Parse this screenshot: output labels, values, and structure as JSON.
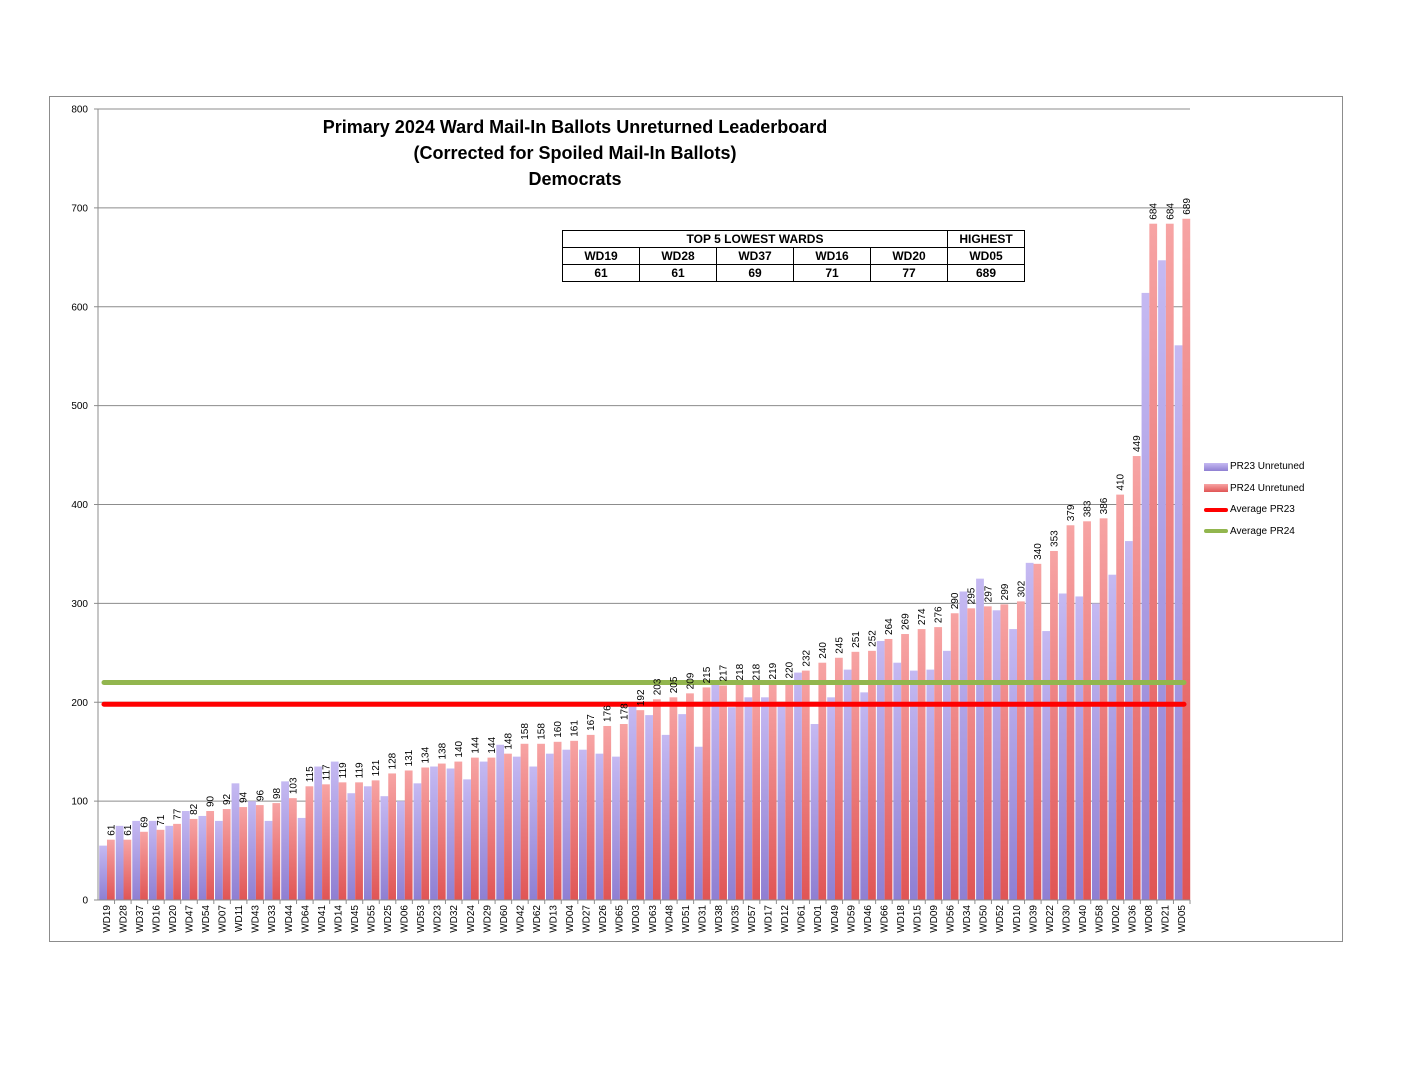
{
  "chart_data": {
    "type": "bar",
    "title": [
      "Primary 2024 Ward Mail-In Ballots Unreturned Leaderboard",
      "(Corrected for Spoiled Mail-In Ballots)",
      "Democrats"
    ],
    "ylim": [
      0,
      800
    ],
    "yticks": [
      0,
      100,
      200,
      300,
      400,
      500,
      600,
      700,
      800
    ],
    "grid": true,
    "legend_position": "right",
    "categories": [
      "WD19",
      "WD28",
      "WD37",
      "WD16",
      "WD20",
      "WD47",
      "WD54",
      "WD07",
      "WD11",
      "WD43",
      "WD33",
      "WD44",
      "WD64",
      "WD41",
      "WD14",
      "WD45",
      "WD55",
      "WD25",
      "WD06",
      "WD53",
      "WD23",
      "WD32",
      "WD24",
      "WD29",
      "WD60",
      "WD42",
      "WD62",
      "WD13",
      "WD04",
      "WD27",
      "WD26",
      "WD65",
      "WD03",
      "WD63",
      "WD48",
      "WD51",
      "WD31",
      "WD38",
      "WD35",
      "WD57",
      "WD17",
      "WD12",
      "WD61",
      "WD01",
      "WD49",
      "WD59",
      "WD46",
      "WD66",
      "WD18",
      "WD15",
      "WD09",
      "WD56",
      "WD34",
      "WD50",
      "WD52",
      "WD10",
      "WD39",
      "WD22",
      "WD30",
      "WD40",
      "WD58",
      "WD02",
      "WD36",
      "WD08",
      "WD21",
      "WD05"
    ],
    "series": [
      {
        "name": "PR23 Unretuned",
        "color": "#a99ae0",
        "values": [
          55,
          75,
          80,
          80,
          75,
          90,
          85,
          80,
          118,
          100,
          80,
          120,
          83,
          135,
          140,
          108,
          115,
          105,
          100,
          118,
          135,
          133,
          122,
          140,
          157,
          145,
          135,
          148,
          152,
          152,
          148,
          145,
          196,
          187,
          167,
          188,
          155,
          220,
          195,
          205,
          205,
          200,
          230,
          178,
          205,
          233,
          210,
          262,
          240,
          232,
          233,
          252,
          312,
          325,
          293,
          274,
          341,
          272,
          310,
          307,
          300,
          329,
          363,
          614,
          647,
          561
        ]
      },
      {
        "name": "PR24 Unretuned",
        "color": "#f28f8f",
        "values": [
          61,
          61,
          69,
          71,
          77,
          82,
          90,
          92,
          94,
          96,
          98,
          103,
          115,
          117,
          119,
          119,
          121,
          128,
          131,
          134,
          138,
          140,
          144,
          144,
          148,
          158,
          158,
          160,
          161,
          167,
          176,
          178,
          192,
          203,
          205,
          209,
          215,
          217,
          218,
          218,
          219,
          220,
          232,
          240,
          245,
          251,
          252,
          264,
          269,
          274,
          276,
          290,
          295,
          297,
          299,
          302,
          340,
          353,
          379,
          383,
          386,
          410,
          449,
          684,
          684,
          689
        ]
      }
    ],
    "reference_lines": [
      {
        "name": "Average PR23",
        "value": 198,
        "color": "#ff0000"
      },
      {
        "name": "Average PR24",
        "value": 220,
        "color": "#92b64e"
      }
    ],
    "summary_table": {
      "header_left": "TOP 5 LOWEST WARDS",
      "header_right": "HIGHEST",
      "wards": [
        "WD19",
        "WD28",
        "WD37",
        "WD16",
        "WD20",
        "WD05"
      ],
      "counts": [
        "61",
        "61",
        "69",
        "71",
        "77",
        "689"
      ]
    }
  }
}
